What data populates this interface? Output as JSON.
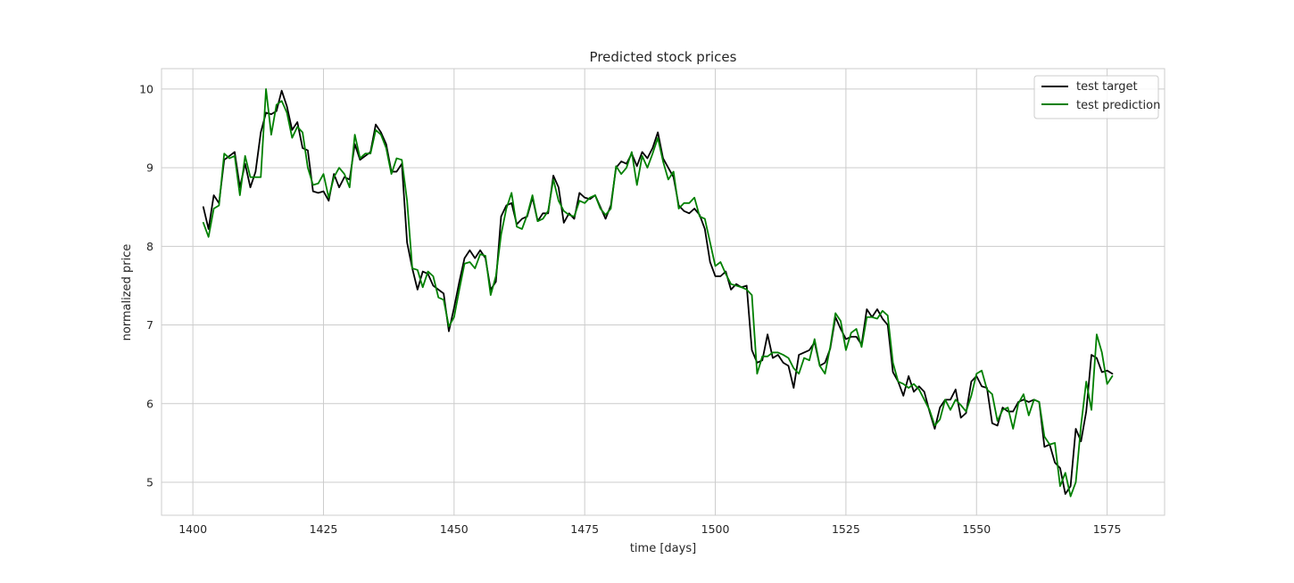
{
  "chart_data": {
    "type": "line",
    "title": "Predicted stock prices",
    "xlabel": "time [days]",
    "ylabel": "normalized price",
    "xlim": [
      1394,
      1586
    ],
    "ylim": [
      4.58,
      10.26
    ],
    "xticks": [
      1400,
      1425,
      1450,
      1475,
      1500,
      1525,
      1550,
      1575
    ],
    "yticks": [
      5,
      6,
      7,
      8,
      9,
      10
    ],
    "grid": true,
    "legend_position": "top-right",
    "x_start": 1402,
    "series": [
      {
        "name": "test target",
        "color": "#000000",
        "values": [
          8.5,
          8.22,
          8.65,
          8.55,
          9.1,
          9.15,
          9.2,
          8.75,
          9.05,
          8.75,
          8.95,
          9.45,
          9.7,
          9.68,
          9.72,
          9.98,
          9.78,
          9.48,
          9.58,
          9.25,
          9.22,
          8.7,
          8.68,
          8.7,
          8.58,
          8.92,
          8.75,
          8.88,
          8.85,
          9.3,
          9.1,
          9.15,
          9.2,
          9.55,
          9.45,
          9.3,
          8.95,
          8.95,
          9.05,
          8.05,
          7.72,
          7.45,
          7.68,
          7.65,
          7.5,
          7.45,
          7.4,
          6.92,
          7.22,
          7.55,
          7.85,
          7.95,
          7.85,
          7.95,
          7.85,
          7.45,
          7.55,
          8.38,
          8.52,
          8.55,
          8.28,
          8.35,
          8.38,
          8.62,
          8.32,
          8.42,
          8.42,
          8.9,
          8.75,
          8.3,
          8.42,
          8.35,
          8.68,
          8.62,
          8.6,
          8.65,
          8.5,
          8.35,
          8.52,
          9.0,
          9.08,
          9.05,
          9.18,
          9.02,
          9.2,
          9.12,
          9.25,
          9.45,
          9.12,
          9.0,
          8.88,
          8.52,
          8.45,
          8.42,
          8.48,
          8.4,
          8.22,
          7.8,
          7.62,
          7.62,
          7.68,
          7.45,
          7.52,
          7.48,
          7.5,
          6.68,
          6.52,
          6.55,
          6.88,
          6.58,
          6.62,
          6.52,
          6.48,
          6.2,
          6.62,
          6.65,
          6.68,
          6.78,
          6.48,
          6.52,
          6.7,
          7.1,
          6.95,
          6.82,
          6.85,
          6.85,
          6.75,
          7.2,
          7.1,
          7.2,
          7.08,
          7.0,
          6.4,
          6.28,
          6.1,
          6.35,
          6.15,
          6.22,
          6.15,
          5.9,
          5.68,
          5.95,
          6.05,
          6.05,
          6.18,
          5.82,
          5.88,
          6.28,
          6.35,
          6.22,
          6.2,
          5.75,
          5.72,
          5.95,
          5.9,
          5.9,
          6.02,
          6.05,
          6.02,
          6.05,
          6.02,
          5.45,
          5.48,
          5.25,
          5.18,
          4.85,
          4.95,
          5.68,
          5.52,
          5.9,
          6.62,
          6.58,
          6.4,
          6.42,
          6.38
        ]
      },
      {
        "name": "test prediction",
        "color": "#008000",
        "values": [
          8.3,
          8.12,
          8.48,
          8.52,
          9.18,
          9.12,
          9.15,
          8.65,
          9.15,
          8.88,
          8.88,
          8.88,
          10.0,
          9.42,
          9.8,
          9.85,
          9.7,
          9.38,
          9.52,
          9.45,
          9.0,
          8.78,
          8.8,
          8.92,
          8.62,
          8.88,
          9.0,
          8.92,
          8.75,
          9.42,
          9.12,
          9.18,
          9.18,
          9.48,
          9.42,
          9.25,
          8.92,
          9.12,
          9.1,
          8.58,
          7.72,
          7.7,
          7.48,
          7.68,
          7.62,
          7.35,
          7.32,
          6.98,
          7.1,
          7.45,
          7.78,
          7.8,
          7.72,
          7.9,
          7.88,
          7.38,
          7.62,
          8.15,
          8.48,
          8.68,
          8.25,
          8.22,
          8.4,
          8.65,
          8.32,
          8.35,
          8.45,
          8.85,
          8.58,
          8.45,
          8.4,
          8.38,
          8.58,
          8.55,
          8.62,
          8.65,
          8.48,
          8.4,
          8.48,
          9.02,
          8.92,
          9.0,
          9.2,
          8.78,
          9.15,
          9.0,
          9.18,
          9.38,
          9.08,
          8.85,
          8.95,
          8.48,
          8.55,
          8.55,
          8.62,
          8.38,
          8.35,
          8.05,
          7.75,
          7.8,
          7.65,
          7.52,
          7.5,
          7.48,
          7.45,
          7.38,
          6.38,
          6.6,
          6.6,
          6.65,
          6.65,
          6.62,
          6.58,
          6.45,
          6.38,
          6.58,
          6.55,
          6.82,
          6.48,
          6.38,
          6.72,
          7.15,
          7.05,
          6.68,
          6.9,
          6.95,
          6.72,
          7.1,
          7.1,
          7.08,
          7.18,
          7.12,
          6.52,
          6.28,
          6.25,
          6.2,
          6.25,
          6.18,
          6.05,
          5.92,
          5.72,
          5.8,
          6.05,
          5.92,
          6.05,
          5.98,
          5.9,
          6.1,
          6.38,
          6.42,
          6.18,
          6.12,
          5.78,
          5.92,
          5.95,
          5.68,
          6.0,
          6.12,
          5.85,
          6.05,
          6.02,
          5.58,
          5.48,
          5.5,
          4.95,
          5.12,
          4.82,
          5.0,
          5.72,
          6.28,
          5.92,
          6.88,
          6.65,
          6.25,
          6.35
        ]
      }
    ]
  }
}
